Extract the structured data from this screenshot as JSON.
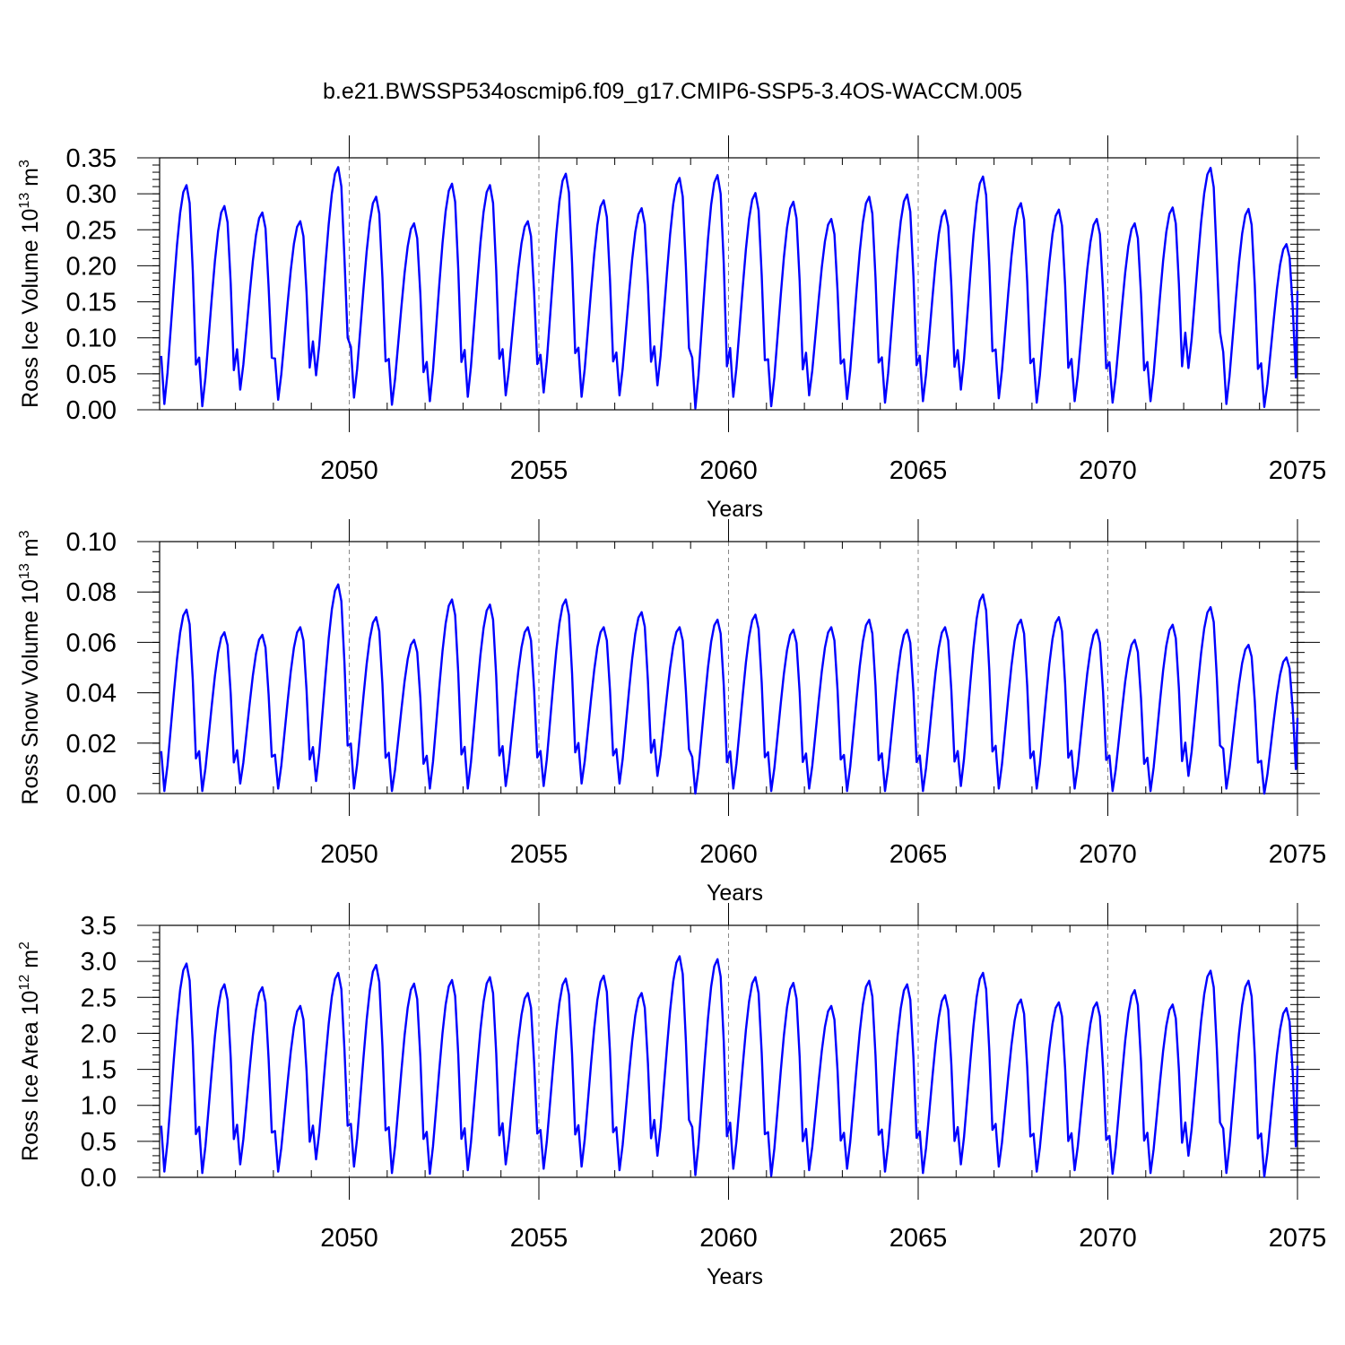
{
  "title": "b.e21.BWSSP534oscmip6.f09_g17.CMIP6-SSP5-3.4OS-WACCM.005",
  "line_color": "#0000ff",
  "chart_data": [
    {
      "type": "line",
      "id": "ice-volume",
      "ylabel_main": "Ross Ice Volume 10",
      "ylabel_sup": "13",
      "ylabel_unit": " m",
      "ylabel_unit_sup": "3",
      "xlabel": "Years",
      "xlim": [
        2045,
        2075
      ],
      "ylim": [
        0,
        0.35
      ],
      "yticks": [
        0.0,
        0.05,
        0.1,
        0.15,
        0.2,
        0.25,
        0.3,
        0.35
      ],
      "ytick_labels": [
        "0.00",
        "0.05",
        "0.10",
        "0.15",
        "0.20",
        "0.25",
        "0.30",
        "0.35"
      ],
      "yminor_step": 0.01,
      "xticks": [
        2050,
        2055,
        2060,
        2065,
        2070,
        2075
      ],
      "xtick_labels": [
        "2050",
        "2055",
        "2060",
        "2065",
        "2070",
        "2075"
      ],
      "series": [
        {
          "name": "Ross Ice Volume",
          "annual_min": [
            0.008,
            0.005,
            0.028,
            0.014,
            0.048,
            0.017,
            0.007,
            0.012,
            0.018,
            0.02,
            0.024,
            0.018,
            0.02,
            0.034,
            0.002,
            0.018,
            0.005,
            0.02,
            0.015,
            0.01,
            0.012,
            0.028,
            0.016,
            0.01,
            0.012,
            0.01,
            0.012,
            0.058,
            0.008,
            0.004
          ],
          "annual_max": [
            0.312,
            0.283,
            0.274,
            0.262,
            0.337,
            0.296,
            0.259,
            0.314,
            0.312,
            0.262,
            0.328,
            0.291,
            0.28,
            0.322,
            0.326,
            0.301,
            0.289,
            0.265,
            0.296,
            0.299,
            0.277,
            0.324,
            0.287,
            0.278,
            0.265,
            0.259,
            0.281,
            0.336,
            0.279,
            0.23
          ],
          "end_value": 0.165
        }
      ]
    },
    {
      "type": "line",
      "id": "snow-volume",
      "ylabel_main": "Ross Snow Volume 10",
      "ylabel_sup": "13",
      "ylabel_unit": " m",
      "ylabel_unit_sup": "3",
      "xlabel": "Years",
      "xlim": [
        2045,
        2075
      ],
      "ylim": [
        0,
        0.1
      ],
      "yticks": [
        0.0,
        0.02,
        0.04,
        0.06,
        0.08,
        0.1
      ],
      "ytick_labels": [
        "0.00",
        "0.02",
        "0.04",
        "0.06",
        "0.08",
        "0.10"
      ],
      "yminor_step": 0.004,
      "xticks": [
        2050,
        2055,
        2060,
        2065,
        2070,
        2075
      ],
      "xtick_labels": [
        "2050",
        "2055",
        "2060",
        "2065",
        "2070",
        "2075"
      ],
      "series": [
        {
          "name": "Ross Snow Volume",
          "annual_min": [
            0.001,
            0.001,
            0.004,
            0.002,
            0.005,
            0.002,
            0.001,
            0.002,
            0.002,
            0.003,
            0.003,
            0.004,
            0.004,
            0.007,
            0.0,
            0.002,
            0.001,
            0.002,
            0.001,
            0.001,
            0.001,
            0.003,
            0.002,
            0.002,
            0.002,
            0.001,
            0.001,
            0.007,
            0.002,
            0.0
          ],
          "annual_max": [
            0.073,
            0.064,
            0.063,
            0.066,
            0.083,
            0.07,
            0.061,
            0.077,
            0.075,
            0.066,
            0.077,
            0.066,
            0.072,
            0.066,
            0.069,
            0.071,
            0.065,
            0.066,
            0.069,
            0.065,
            0.066,
            0.079,
            0.069,
            0.07,
            0.065,
            0.061,
            0.067,
            0.074,
            0.059,
            0.054
          ],
          "end_value": 0.03
        }
      ]
    },
    {
      "type": "line",
      "id": "ice-area",
      "ylabel_main": "Ross Ice Area 10",
      "ylabel_sup": "12",
      "ylabel_unit": " m",
      "ylabel_unit_sup": "2",
      "xlabel": "Years",
      "xlim": [
        2045,
        2075
      ],
      "ylim": [
        0,
        3.5
      ],
      "yticks": [
        0.0,
        0.5,
        1.0,
        1.5,
        2.0,
        2.5,
        3.0,
        3.5
      ],
      "ytick_labels": [
        "0.0",
        "0.5",
        "1.0",
        "1.5",
        "2.0",
        "2.5",
        "3.0",
        "3.5"
      ],
      "yminor_step": 0.1,
      "xticks": [
        2050,
        2055,
        2060,
        2065,
        2070,
        2075
      ],
      "xtick_labels": [
        "2050",
        "2055",
        "2060",
        "2065",
        "2070",
        "2075"
      ],
      "series": [
        {
          "name": "Ross Ice Area",
          "annual_min": [
            0.08,
            0.06,
            0.18,
            0.08,
            0.25,
            0.15,
            0.06,
            0.05,
            0.1,
            0.18,
            0.12,
            0.15,
            0.1,
            0.3,
            0.03,
            0.12,
            0.02,
            0.1,
            0.12,
            0.08,
            0.06,
            0.18,
            0.15,
            0.08,
            0.1,
            0.05,
            0.06,
            0.3,
            0.06,
            0.01
          ],
          "annual_max": [
            2.97,
            2.68,
            2.64,
            2.38,
            2.84,
            2.95,
            2.69,
            2.74,
            2.78,
            2.56,
            2.76,
            2.8,
            2.56,
            3.07,
            3.03,
            2.78,
            2.7,
            2.38,
            2.73,
            2.68,
            2.53,
            2.84,
            2.47,
            2.43,
            2.43,
            2.6,
            2.4,
            2.87,
            2.73,
            2.35
          ],
          "end_value": 1.55
        }
      ]
    }
  ]
}
